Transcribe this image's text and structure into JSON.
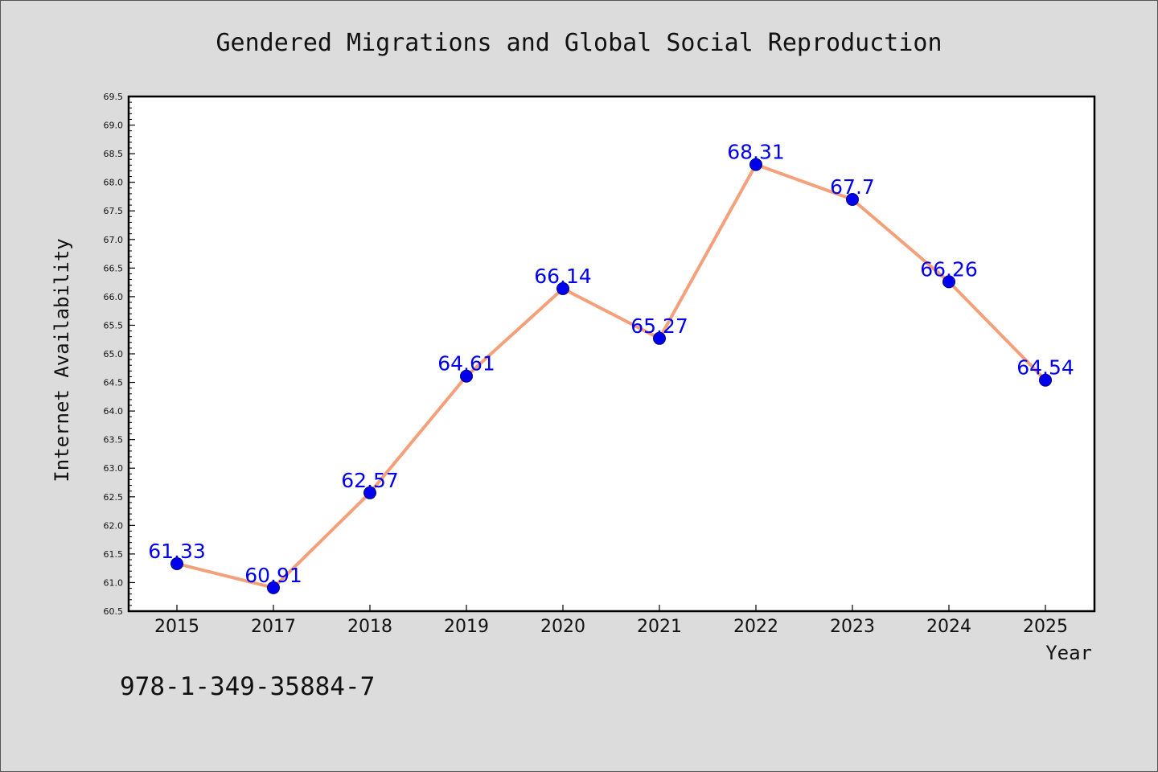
{
  "chart_data": {
    "type": "line",
    "title": "Gendered Migrations and Global Social Reproduction",
    "xlabel": "Year",
    "ylabel": "Internet Availability",
    "categories": [
      "2015",
      "2017",
      "2018",
      "2019",
      "2020",
      "2021",
      "2022",
      "2023",
      "2024",
      "2025"
    ],
    "series": [
      {
        "values": [
          61.33,
          60.91,
          62.57,
          64.61,
          66.14,
          65.27,
          68.31,
          67.7,
          66.26,
          64.54
        ]
      }
    ],
    "data_labels": [
      "61.33",
      "60.91",
      "62.57",
      "64.61",
      "66.14",
      "65.27",
      "68.31",
      "67.7",
      "66.26",
      "64.54"
    ],
    "ylim": [
      60.5,
      69.5
    ],
    "yticks": [
      "60.5",
      "61.0",
      "61.5",
      "62.0",
      "62.5",
      "63.0",
      "63.5",
      "64.0",
      "64.5",
      "65.0",
      "65.5",
      "66.0",
      "66.5",
      "67.0",
      "67.5",
      "68.0",
      "68.5",
      "69.0",
      "69.5"
    ],
    "grid": false,
    "legend": "none",
    "colors": {
      "line": "#f4a07a",
      "marker": "#0000ee",
      "label": "#0000ee",
      "plot_bg": "#ffffff",
      "page_bg": "#dcdcdc"
    }
  },
  "footer": {
    "isbn": "978-1-349-35884-7"
  }
}
